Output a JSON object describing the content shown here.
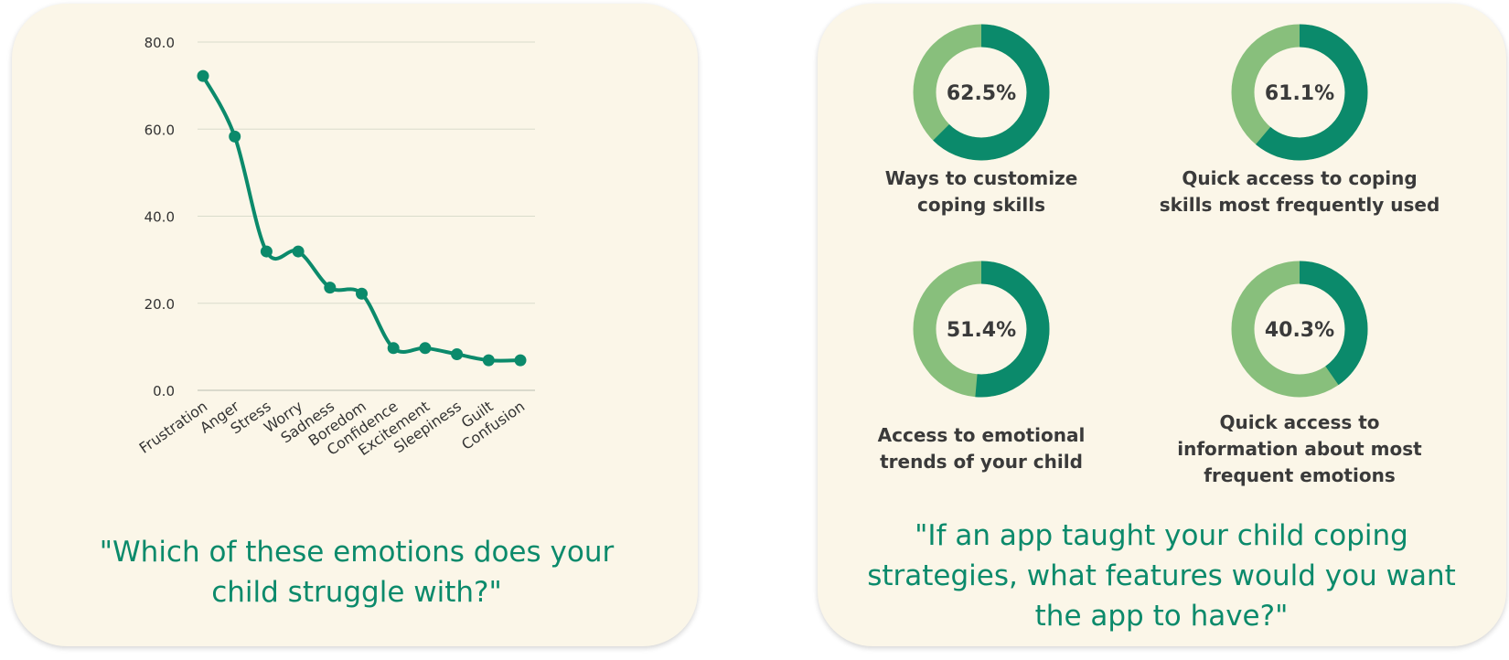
{
  "colors": {
    "line": "#0b8a6b",
    "dark": "#0b8a6b",
    "light": "#88bf7c",
    "card": "#fbf6e8",
    "grid": "#d9dccc"
  },
  "chart_data": [
    {
      "type": "line",
      "categories": [
        "Frustration",
        "Anger",
        "Stress",
        "Worry",
        "Sadness",
        "Boredom",
        "Confidence",
        "Excitement",
        "Sleepiness",
        "Guilt",
        "Confusion"
      ],
      "values": [
        72.2,
        58.3,
        31.9,
        31.9,
        23.6,
        22.2,
        9.7,
        9.7,
        8.3,
        6.9,
        6.9
      ],
      "yticks": [
        "0.0",
        "20.0",
        "40.0",
        "60.0",
        "80.0"
      ],
      "ylim": [
        0,
        80
      ],
      "grid": true
    },
    {
      "type": "pie",
      "donuts": [
        {
          "value": 62.5,
          "display": "62.5%",
          "label": [
            "Ways to customize",
            "coping skills"
          ]
        },
        {
          "value": 61.1,
          "display": "61.1%",
          "label": [
            "Quick access to coping",
            "skills most frequently used"
          ]
        },
        {
          "value": 51.4,
          "display": "51.4%",
          "label": [
            "Access to emotional",
            "trends of your child"
          ]
        },
        {
          "value": 40.3,
          "display": "40.3%",
          "label": [
            "Quick access to",
            "information about most",
            "frequent emotions"
          ]
        }
      ]
    }
  ],
  "questions": {
    "left": "\"Which of these emotions does your child struggle with?\"",
    "right": "\"If an app taught your child coping strategies, what features would you want the app to have?\""
  }
}
